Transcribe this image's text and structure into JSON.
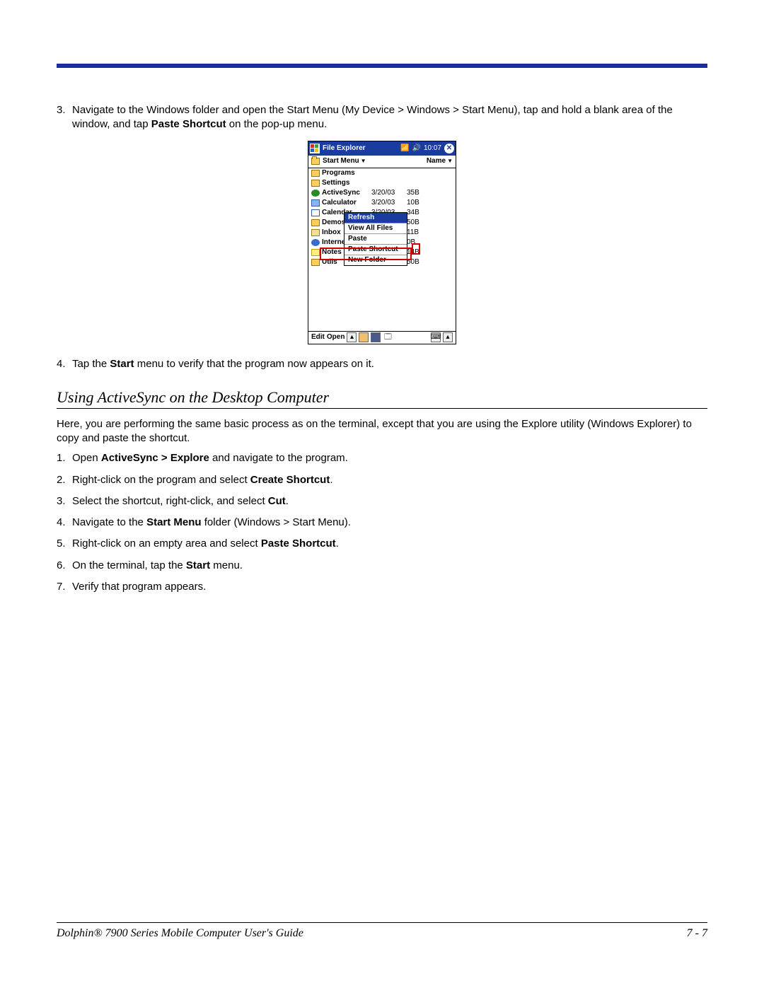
{
  "step3": {
    "num": "3.",
    "text_a": "Navigate to the Windows folder and open the Start Menu (My Device > Windows > Start Menu), tap and hold a blank area of the window, and tap ",
    "text_b": "Paste Shortcut",
    "text_c": " on the pop-up menu."
  },
  "pda": {
    "title": "File Explorer",
    "time": "10:07",
    "path": "Start Menu",
    "sort": "Name",
    "rows": [
      {
        "name": "Programs",
        "dt": "",
        "sz": "",
        "ic": "ic-folder"
      },
      {
        "name": "Settings",
        "dt": "",
        "sz": "",
        "ic": "ic-folder"
      },
      {
        "name": "ActiveSync",
        "dt": "3/20/03",
        "sz": "35B",
        "ic": "ic-sync"
      },
      {
        "name": "Calculator",
        "dt": "3/20/03",
        "sz": "10B",
        "ic": "ic-app"
      },
      {
        "name": "Calendar",
        "dt": "3/20/03",
        "sz": "34B",
        "ic": "ic-cal"
      },
      {
        "name": "Demos",
        "dt": "",
        "sz": "50B",
        "ic": "ic-folder"
      },
      {
        "name": "Inbox",
        "dt": "",
        "sz": "11B",
        "ic": "ic-mail"
      },
      {
        "name": "Internet",
        "dt": "",
        "sz": "0B",
        "ic": "ic-net"
      },
      {
        "name": "Notes",
        "dt": "",
        "sz": "14B",
        "ic": "ic-note"
      },
      {
        "name": "Utils",
        "dt": "",
        "sz": "50B",
        "ic": "ic-folder"
      }
    ],
    "ctx": {
      "refresh": "Refresh",
      "viewall": "View All Files",
      "paste": "Paste",
      "pasteshortcut": "Paste Shortcut",
      "newfolder": "New Folder"
    },
    "bottom": {
      "edit": "Edit",
      "open": "Open"
    }
  },
  "step4": {
    "num": "4.",
    "text_a": "Tap the ",
    "text_b": "Start",
    "text_c": " menu to verify that the program now appears on it."
  },
  "section_heading": "Using ActiveSync on the Desktop Computer",
  "intro": "Here, you are performing the same basic process as on the terminal, except that you are using the Explore utility (Windows Explorer) to copy and paste the shortcut.",
  "steps2": {
    "s1": {
      "n": "1.",
      "a": "Open ",
      "b": "ActiveSync > Explore",
      "c": " and navigate to the program."
    },
    "s2": {
      "n": "2.",
      "a": "Right-click on the program and select ",
      "b": "Create Shortcut",
      "c": "."
    },
    "s3": {
      "n": "3.",
      "a": "Select the shortcut, right-click, and select ",
      "b": "Cut",
      "c": "."
    },
    "s4": {
      "n": "4.",
      "a": "Navigate to the ",
      "b": "Start Menu",
      "c": " folder (Windows > Start Menu)."
    },
    "s5": {
      "n": "5.",
      "a": "Right-click on an empty area and select ",
      "b": "Paste Shortcut",
      "c": "."
    },
    "s6": {
      "n": "6.",
      "a": "On the terminal, tap the ",
      "b": "Start",
      "c": " menu."
    },
    "s7": {
      "n": "7.",
      "a": "Verify that program appears.",
      "b": "",
      "c": ""
    }
  },
  "footer": {
    "left": "Dolphin® 7900 Series Mobile Computer User's Guide",
    "right": "7 - 7"
  }
}
